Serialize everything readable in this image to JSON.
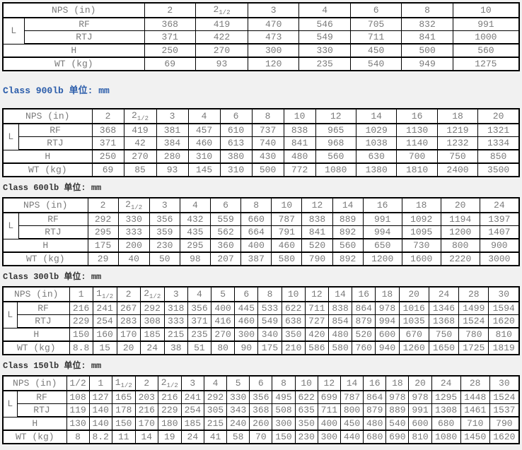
{
  "page": {
    "background_color": "#f1f1f1",
    "table_bg_color": "#ffffff",
    "border_color": "#000000",
    "table_text_color": "#7a7a7a",
    "heading_accent_color": "#2a5caa",
    "heading_text_color": "#333333"
  },
  "labels": {
    "nps": "NPS (in)",
    "l_group": "L",
    "rf": "RF",
    "rtj": "RTJ",
    "height": "H",
    "weight": "WT (kg)"
  },
  "tables": [
    {
      "heading": "",
      "nps": [
        "2",
        "2 1/2",
        "3",
        "4",
        "6",
        "8",
        "10"
      ],
      "rf": [
        368,
        419,
        470,
        546,
        705,
        832,
        991
      ],
      "rtj": [
        371,
        422,
        473,
        549,
        711,
        841,
        1000
      ],
      "h": [
        250,
        270,
        300,
        330,
        450,
        500,
        560
      ],
      "wt": [
        69,
        93,
        120,
        235,
        540,
        949,
        1275
      ]
    },
    {
      "heading": "Class 900lb  单位: mm",
      "nps": [
        "2",
        "2 1/2",
        "3",
        "4",
        "6",
        "8",
        "10",
        "12",
        "14",
        "16",
        "18",
        "20"
      ],
      "rf": [
        368,
        419,
        381,
        457,
        610,
        737,
        838,
        965,
        1029,
        1130,
        1219,
        1321
      ],
      "rtj": [
        371,
        42,
        384,
        460,
        613,
        740,
        841,
        968,
        1038,
        1140,
        1232,
        1334
      ],
      "h": [
        250,
        270,
        280,
        310,
        380,
        430,
        480,
        560,
        630,
        700,
        750,
        850
      ],
      "wt": [
        69,
        85,
        93,
        145,
        310,
        500,
        772,
        1080,
        1380,
        1810,
        2400,
        3500
      ]
    },
    {
      "heading": "Class 600lb  单位: mm",
      "nps": [
        "2",
        "2 1/2",
        "3",
        "4",
        "6",
        "8",
        "10",
        "12",
        "14",
        "16",
        "18",
        "20",
        "24"
      ],
      "rf": [
        292,
        330,
        356,
        432,
        559,
        660,
        787,
        838,
        889,
        991,
        1092,
        1194,
        1397
      ],
      "rtj": [
        295,
        333,
        359,
        435,
        562,
        664,
        791,
        841,
        892,
        994,
        1095,
        1200,
        1407
      ],
      "h": [
        175,
        200,
        230,
        295,
        360,
        400,
        460,
        520,
        560,
        650,
        730,
        800,
        900
      ],
      "wt": [
        29,
        40,
        50,
        98,
        207,
        387,
        580,
        790,
        892,
        1200,
        1600,
        2220,
        3000
      ]
    },
    {
      "heading": "Class 300lb  单位: mm",
      "nps": [
        "1",
        "1 1/2",
        "2",
        "2 1/2",
        "3",
        "4",
        "5",
        "6",
        "8",
        "10",
        "12",
        "14",
        "16",
        "18",
        "20",
        "24",
        "28",
        "30"
      ],
      "rf": [
        216,
        241,
        267,
        292,
        318,
        356,
        400,
        445,
        533,
        622,
        711,
        838,
        864,
        978,
        1016,
        1346,
        1499,
        1594
      ],
      "rtj": [
        229,
        254,
        283,
        308,
        333,
        371,
        416,
        460,
        549,
        638,
        727,
        854,
        879,
        994,
        1035,
        1368,
        1524,
        1620
      ],
      "h": [
        150,
        160,
        170,
        185,
        215,
        235,
        270,
        300,
        340,
        350,
        420,
        480,
        520,
        600,
        670,
        750,
        780,
        810
      ],
      "wt": [
        8.8,
        15,
        20,
        24,
        38,
        51,
        80,
        90,
        175,
        210,
        586,
        580,
        760,
        940,
        1260,
        1650,
        1725,
        1819
      ]
    },
    {
      "heading": "Class 150lb  单位: mm",
      "nps": [
        "1/2",
        "1",
        "1 1/2",
        "2",
        "2 1/2",
        "3",
        "4",
        "5",
        "6",
        "8",
        "10",
        "12",
        "14",
        "16",
        "18",
        "20",
        "24",
        "28",
        "30"
      ],
      "rf": [
        108,
        127,
        165,
        203,
        216,
        241,
        292,
        330,
        356,
        495,
        622,
        699,
        787,
        864,
        978,
        978,
        1295,
        1448,
        1524
      ],
      "rtj": [
        119,
        140,
        178,
        216,
        229,
        254,
        305,
        343,
        368,
        508,
        635,
        711,
        800,
        879,
        889,
        991,
        1308,
        1461,
        1537
      ],
      "h": [
        130,
        140,
        150,
        170,
        180,
        185,
        215,
        240,
        260,
        300,
        350,
        400,
        450,
        480,
        540,
        600,
        680,
        710,
        790
      ],
      "wt": [
        8,
        8.2,
        11,
        14,
        19,
        24,
        41,
        58,
        70,
        150,
        230,
        300,
        440,
        680,
        690,
        810,
        1080,
        1450,
        1620
      ]
    }
  ]
}
